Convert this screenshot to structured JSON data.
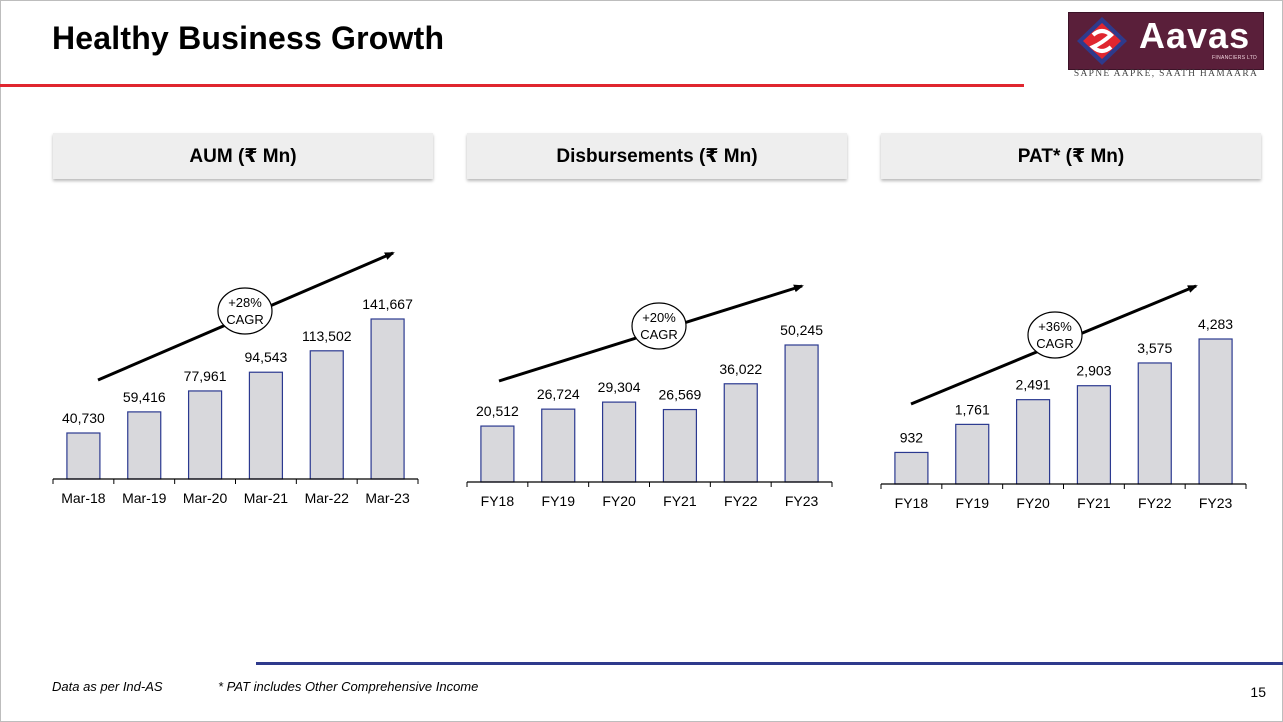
{
  "slide": {
    "title": "Healthy Business Growth",
    "page_number": "15",
    "footnotes": [
      "Data as per Ind-AS",
      "* PAT includes Other Comprehensive Income"
    ]
  },
  "logo": {
    "name": "Aavas",
    "subtitle": "FINANCIERS LTD",
    "tagline": "SAPNE AAPKE, SAATH HAMAARA",
    "colors": {
      "background": "#5a1f3a",
      "accent_red": "#e0262f",
      "accent_blue": "#2e3a8c"
    }
  },
  "colors": {
    "bar_fill": "#d8d8dc",
    "bar_stroke": "#2b3990",
    "title_rule": "#e0262f",
    "footer_rule": "#2e3a8c"
  },
  "chart_data": [
    {
      "type": "bar",
      "title": "AUM (₹ Mn)",
      "categories": [
        "Mar-18",
        "Mar-19",
        "Mar-20",
        "Mar-21",
        "Mar-22",
        "Mar-23"
      ],
      "values": [
        40730,
        59416,
        77961,
        94543,
        113502,
        141667
      ],
      "value_labels": [
        "40,730",
        "59,416",
        "77,961",
        "94,543",
        "113,502",
        "141,667"
      ],
      "ylim": [
        0,
        160000
      ],
      "annotation": {
        "line1": "+28%",
        "line2": "CAGR"
      },
      "grid": false
    },
    {
      "type": "bar",
      "title": "Disbursements (₹ Mn)",
      "categories": [
        "FY18",
        "FY19",
        "FY20",
        "FY21",
        "FY22",
        "FY23"
      ],
      "values": [
        20512,
        26724,
        29304,
        26569,
        36022,
        50245
      ],
      "value_labels": [
        "20,512",
        "26,724",
        "29,304",
        "26,569",
        "36,022",
        "50,245"
      ],
      "ylim": [
        0,
        64000
      ],
      "annotation": {
        "line1": "+20%",
        "line2": "CAGR"
      },
      "grid": false
    },
    {
      "type": "bar",
      "title": "PAT* (₹ Mn)",
      "categories": [
        "FY18",
        "FY19",
        "FY20",
        "FY21",
        "FY22",
        "FY23"
      ],
      "values": [
        932,
        1761,
        2491,
        2903,
        3575,
        4283
      ],
      "value_labels": [
        "932",
        "1,761",
        "2,491",
        "2,903",
        "3,575",
        "4,283"
      ],
      "ylim": [
        0,
        5500
      ],
      "annotation": {
        "line1": "+36%",
        "line2": "CAGR"
      },
      "grid": false
    }
  ]
}
